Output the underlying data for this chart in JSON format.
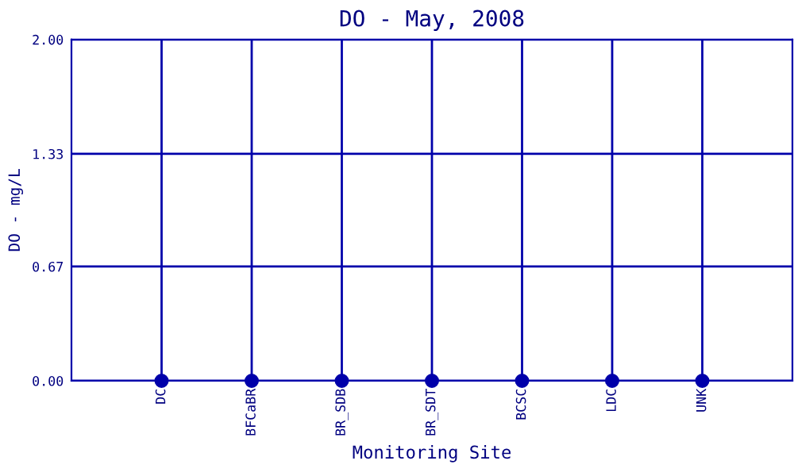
{
  "chart_data": {
    "type": "scatter",
    "title": "DO - May, 2008",
    "xlabel": "Monitoring Site",
    "ylabel": "DO - mg/L",
    "categories": [
      "DC",
      "BFCaBR",
      "BR_SDB",
      "BR_SDT",
      "BCSC",
      "LDC",
      "UNK"
    ],
    "series": [
      {
        "color": "#0000aa",
        "values": [
          0,
          0,
          0,
          0,
          0,
          0,
          0
        ]
      }
    ],
    "ylim": [
      0,
      2
    ],
    "yticks": [
      {
        "value": 0,
        "label": "0.00"
      },
      {
        "value": 0.67,
        "label": "0.67"
      },
      {
        "value": 1.33,
        "label": "1.33"
      },
      {
        "value": 2,
        "label": "2.00"
      }
    ],
    "grid": true,
    "marker": "circle"
  }
}
